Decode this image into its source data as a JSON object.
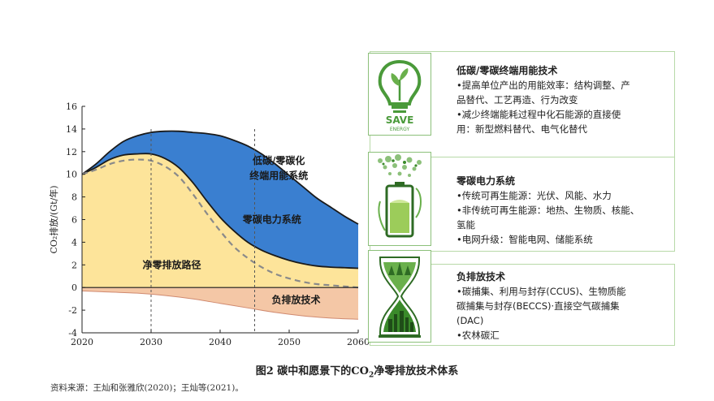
{
  "chart_data": {
    "type": "area",
    "xlabel": "",
    "ylabel": "CO₂排放/(Gt/年)",
    "xlim": [
      2020,
      2060
    ],
    "ylim": [
      -4,
      16
    ],
    "xticks": [
      2020,
      2030,
      2040,
      2050,
      2060
    ],
    "yticks": [
      16,
      14,
      12,
      10,
      8,
      6,
      4,
      2,
      0,
      -2,
      -4
    ],
    "reference_lines_x": [
      2030,
      2045
    ],
    "series": [
      {
        "name": "低碳/零碳化终端用能系统",
        "color": "#3a7fd0",
        "x": [
          2020,
          2022,
          2024,
          2026,
          2028,
          2030,
          2032,
          2034,
          2036,
          2038,
          2040,
          2042,
          2044,
          2046,
          2048,
          2050,
          2052,
          2054,
          2056,
          2058,
          2060
        ],
        "upper": [
          10.0,
          10.9,
          12.0,
          12.9,
          13.4,
          13.7,
          13.8,
          13.8,
          13.7,
          13.6,
          13.4,
          13.0,
          12.5,
          11.8,
          10.9,
          9.9,
          8.9,
          7.9,
          7.1,
          6.3,
          5.6
        ]
      },
      {
        "name": "零碳电力系统",
        "color": "#a8d08d",
        "x": [
          2020,
          2022,
          2024,
          2026,
          2028,
          2030,
          2032,
          2034,
          2036,
          2038,
          2040,
          2042,
          2044,
          2046,
          2048,
          2050,
          2052,
          2054,
          2056,
          2058,
          2060
        ],
        "upper": [
          10.0,
          10.6,
          11.3,
          11.7,
          11.8,
          11.8,
          11.4,
          10.6,
          9.3,
          7.7,
          6.2,
          5.0,
          4.0,
          3.3,
          2.8,
          2.4,
          2.1,
          1.9,
          1.8,
          1.75,
          1.7
        ]
      },
      {
        "name": "净零排放路径",
        "color": "#fde49a",
        "x": [
          2020,
          2022,
          2024,
          2026,
          2028,
          2030,
          2032,
          2034,
          2036,
          2038,
          2040,
          2042,
          2044,
          2046,
          2048,
          2050,
          2052,
          2054,
          2056,
          2058,
          2060
        ],
        "upper": [
          10.0,
          10.4,
          10.9,
          11.2,
          11.3,
          11.2,
          10.7,
          9.8,
          8.3,
          6.6,
          5.0,
          3.6,
          2.6,
          1.8,
          1.2,
          0.8,
          0.5,
          0.3,
          0.2,
          0.1,
          0.0
        ]
      },
      {
        "name": "负排放技术",
        "color": "#f4c7a6",
        "x": [
          2020,
          2024,
          2028,
          2032,
          2036,
          2040,
          2044,
          2048,
          2052,
          2056,
          2060
        ],
        "lower": [
          -0.3,
          -0.4,
          -0.5,
          -0.7,
          -1.0,
          -1.4,
          -1.8,
          -2.2,
          -2.5,
          -2.7,
          -2.8
        ]
      }
    ],
    "area_labels": [
      {
        "text": "低碳/零碳化",
        "year": 2048.5,
        "value": 10.9
      },
      {
        "text": "终端用能系统",
        "year": 2048.5,
        "value": 9.6
      },
      {
        "text": "零碳电力系统",
        "year": 2047.5,
        "value": 5.7
      },
      {
        "text": "净零排放路径",
        "year": 2033,
        "value": 1.7
      },
      {
        "text": "负排放技术",
        "year": 2051,
        "value": -1.4
      }
    ],
    "title": "图2  碳中和愿景下的CO₂净零排放技术体系"
  },
  "caption": {
    "prefix": "图2  碳中和愿景下的CO",
    "sub": "2",
    "suffix": "净零排放技术体系"
  },
  "source": "资料来源：王灿和张雅欣(2020)；王灿等(2021)。",
  "panels": [
    {
      "icon": "save-energy-bulb-icon",
      "icon_text_main": "SAVE",
      "icon_text_sub": "ENERGY",
      "title": "低碳/零碳终端用能技术",
      "lines": [
        "•提高单位产出的用能效率：结构调整、产",
        "品替代、工艺再造、行为改变",
        "•减少终端能耗过程中化石能源的直接使",
        "用：新型燃料替代、电气化替代"
      ]
    },
    {
      "icon": "green-battery-icon",
      "title": "零碳电力系统",
      "lines": [
        "•传统可再生能源：光伏、风能、水力",
        "•非传统可再生能源：地热、生物质、核能、",
        "氢能",
        "•电网升级：智能电网、储能系统"
      ]
    },
    {
      "icon": "hourglass-forest-icon",
      "title": "负排放技术",
      "lines": [
        "•碳捕集、利用与封存(CCUS)、生物质能",
        "碳捕集与封存(BECCS)·直接空气碳捕集",
        "(DAC)",
        "•农林碳汇"
      ]
    }
  ],
  "colors": {
    "accent": "#6ab04c",
    "blue": "#3a7fd0",
    "green": "#a8d08d",
    "yellow": "#fde49a",
    "orange": "#f4c7a6"
  }
}
